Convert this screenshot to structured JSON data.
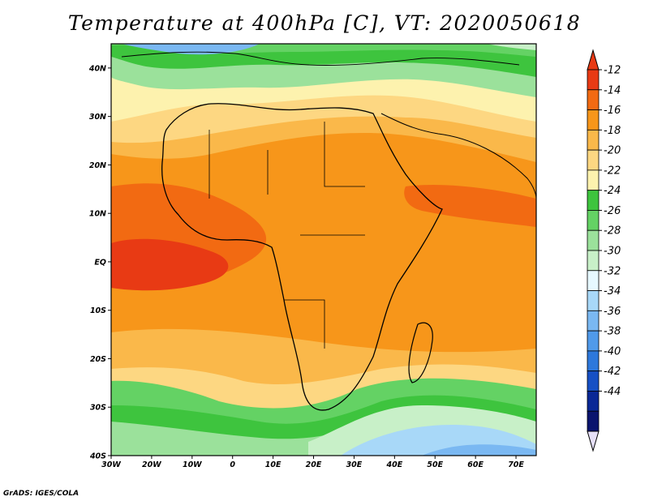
{
  "title": "Temperature at 400hPa [C], VT: 2020050618",
  "credit": "GrADS: IGES/COLA",
  "map": {
    "lon_range": [
      -30,
      75
    ],
    "lat_range": [
      -40,
      45
    ],
    "lon_ticks": [
      {
        "lon": -30,
        "label": "30W"
      },
      {
        "lon": -20,
        "label": "20W"
      },
      {
        "lon": -10,
        "label": "10W"
      },
      {
        "lon": 0,
        "label": "0"
      },
      {
        "lon": 10,
        "label": "10E"
      },
      {
        "lon": 20,
        "label": "20E"
      },
      {
        "lon": 30,
        "label": "30E"
      },
      {
        "lon": 40,
        "label": "40E"
      },
      {
        "lon": 50,
        "label": "50E"
      },
      {
        "lon": 60,
        "label": "60E"
      },
      {
        "lon": 70,
        "label": "70E"
      }
    ],
    "lat_ticks": [
      {
        "lat": 40,
        "label": "40N"
      },
      {
        "lat": 30,
        "label": "30N"
      },
      {
        "lat": 20,
        "label": "20N"
      },
      {
        "lat": 10,
        "label": "10N"
      },
      {
        "lat": 0,
        "label": "EQ"
      },
      {
        "lat": -10,
        "label": "10S"
      },
      {
        "lat": -20,
        "label": "20S"
      },
      {
        "lat": -30,
        "label": "30S"
      },
      {
        "lat": -40,
        "label": "40S"
      }
    ]
  },
  "colorbar": {
    "labels": [
      "-12",
      "-14",
      "-16",
      "-18",
      "-20",
      "-22",
      "-24",
      "-26",
      "-28",
      "-30",
      "-32",
      "-34",
      "-36",
      "-38",
      "-40",
      "-42",
      "-44"
    ],
    "colors": [
      "#e83a14",
      "#f26a12",
      "#f7961a",
      "#fab84a",
      "#fdd782",
      "#fdf2ae",
      "#3ec43e",
      "#64d264",
      "#9be19b",
      "#c8f0c8",
      "#e6f8ff",
      "#a8d8f8",
      "#7ab8f2",
      "#509aea",
      "#2d78dc",
      "#1650c4",
      "#0a2896",
      "#0a146e"
    ],
    "arrow_top": "#e83a14",
    "arrow_bottom": "#e6e0f8"
  }
}
